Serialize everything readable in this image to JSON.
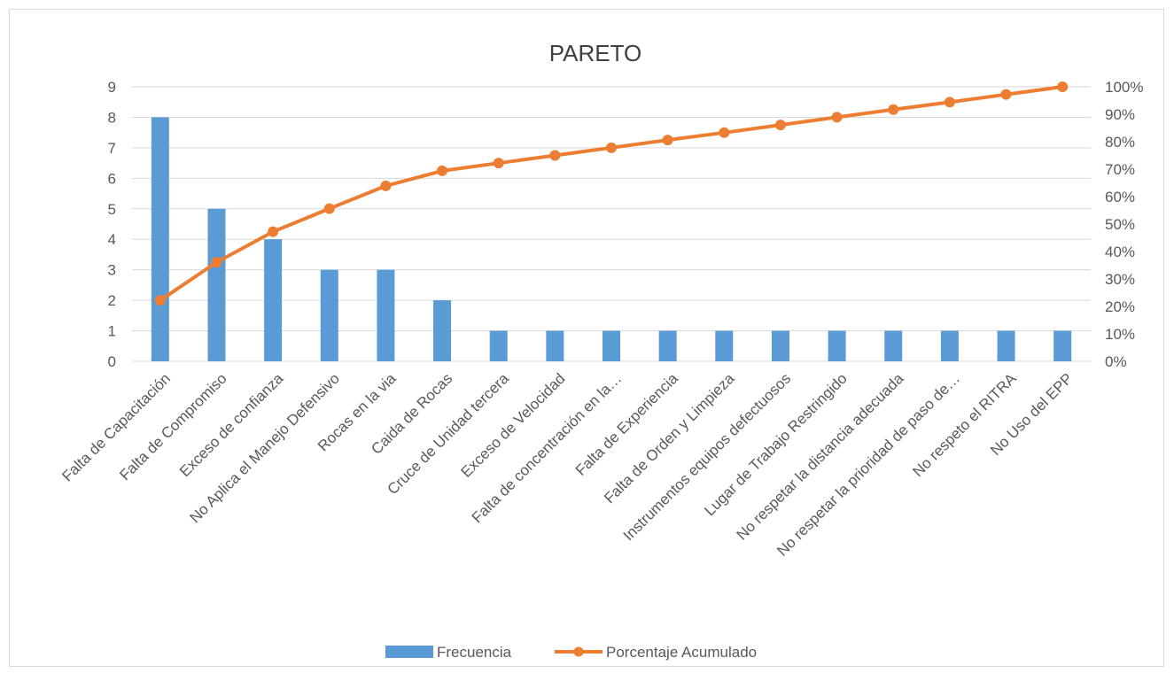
{
  "chart_data": {
    "type": "bar",
    "title": "PARETO",
    "categories": [
      "Falta de Capacitación",
      "Falta de Compromiso",
      "Exceso de confianza",
      "No Aplica el Manejo Defensivo",
      "Rocas en la via",
      "Caida de Rocas",
      "Cruce de Unidad tercera",
      "Exceso de Velocidad",
      "Falta de concentración en la…",
      "Falta de Experiencia",
      "Falta de Orden y Limpieza",
      "Instrumentos equipos defectuosos",
      "Lugar de Trabajo Restringido",
      "No respetar la distancia adecuada",
      "No respetar la prioridad de paso de…",
      "No respeto el RITRA",
      "No Uso del EPP"
    ],
    "series": [
      {
        "name": "Frecuencia",
        "type": "bar",
        "axis": "left",
        "color": "#5b9bd5",
        "values": [
          8,
          5,
          4,
          3,
          3,
          2,
          1,
          1,
          1,
          1,
          1,
          1,
          1,
          1,
          1,
          1,
          1
        ]
      },
      {
        "name": "Porcentaje Acumulado",
        "type": "line",
        "axis": "right",
        "color": "#ed7d31",
        "values": [
          22.2,
          36.1,
          47.2,
          55.6,
          63.9,
          69.4,
          72.2,
          75.0,
          77.8,
          80.6,
          83.3,
          86.1,
          88.9,
          91.7,
          94.4,
          97.2,
          100.0
        ]
      }
    ],
    "y_left": {
      "min": 0,
      "max": 9,
      "ticks": [
        "0",
        "1",
        "2",
        "3",
        "4",
        "5",
        "6",
        "7",
        "8",
        "9"
      ]
    },
    "y_right": {
      "min": 0,
      "max": 100,
      "ticks": [
        "0%",
        "10%",
        "20%",
        "30%",
        "40%",
        "50%",
        "60%",
        "70%",
        "80%",
        "90%",
        "100%"
      ]
    },
    "grid": true,
    "legend_position": "bottom"
  }
}
